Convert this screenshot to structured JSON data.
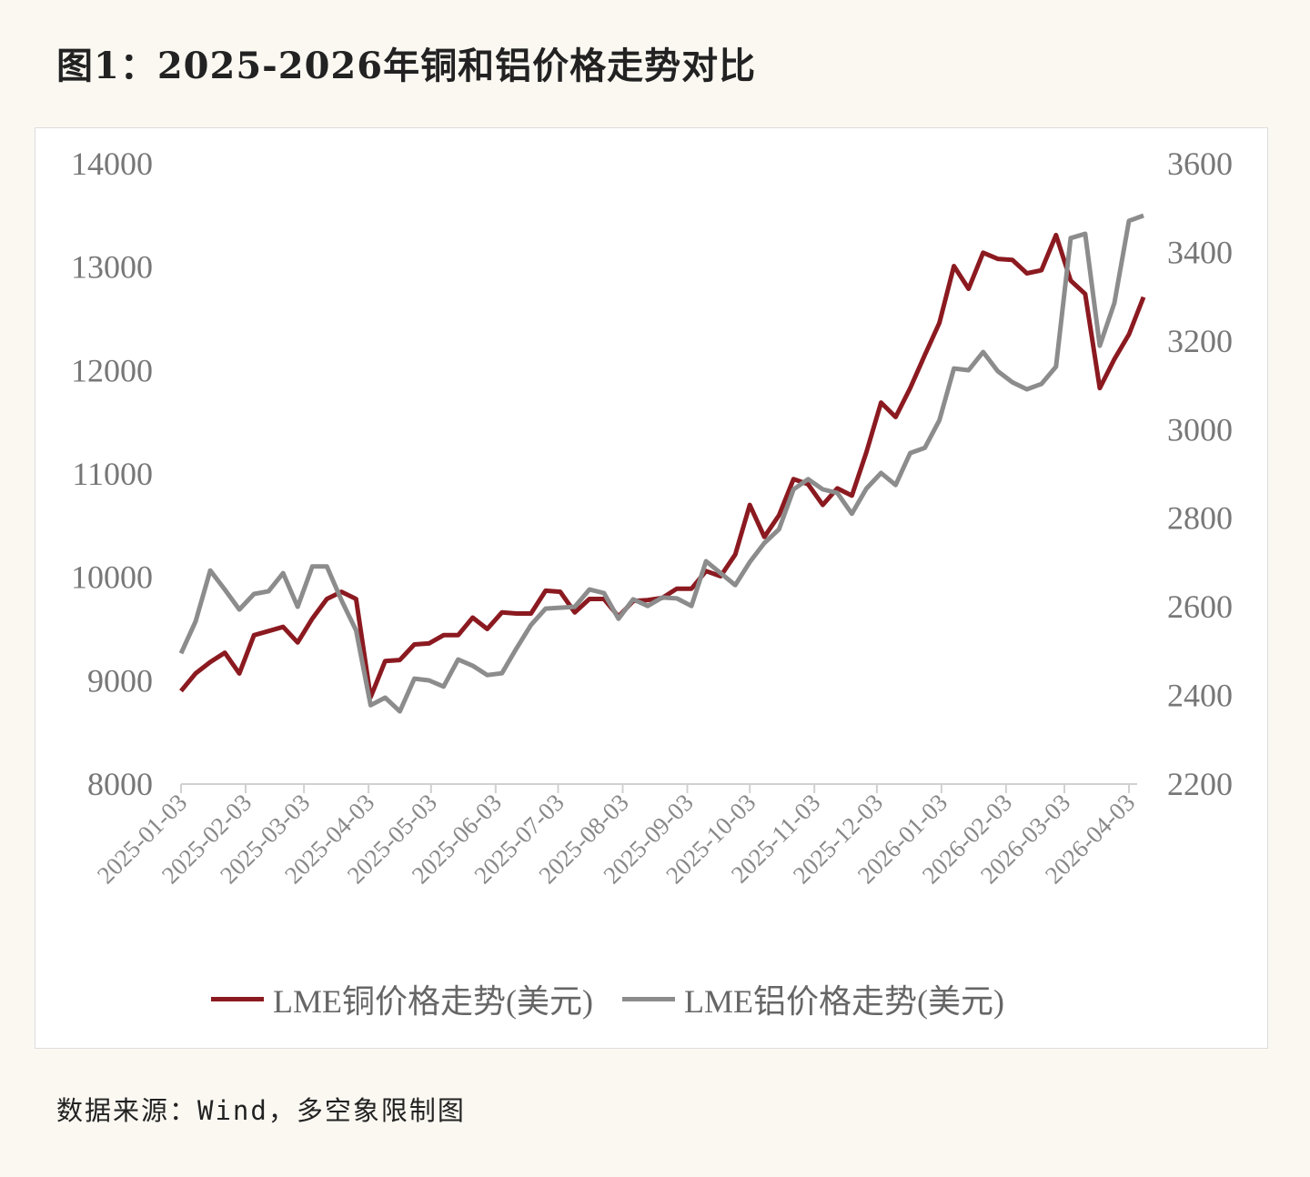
{
  "title": "图1：2025-2026年铜和铝价格走势对比",
  "source": "数据来源：Wind，多空象限制图",
  "chart_data": {
    "type": "line",
    "title": "",
    "xlabel": "",
    "ylabel_left": "",
    "ylabel_right": "",
    "grid": false,
    "legend_position": "bottom",
    "x_ticks": [
      "2025-01-03",
      "2025-02-03",
      "2025-03-03",
      "2025-04-03",
      "2025-05-03",
      "2025-06-03",
      "2025-07-03",
      "2025-08-03",
      "2025-09-03",
      "2025-10-03",
      "2025-11-03",
      "2025-12-03",
      "2026-01-03",
      "2026-02-03",
      "2026-03-03",
      "2026-04-03"
    ],
    "y_left": {
      "range": [
        8000,
        14000
      ],
      "ticks": [
        "8000",
        "9000",
        "10000",
        "11000",
        "12000",
        "13000",
        "14000"
      ]
    },
    "y_right": {
      "range": [
        2200,
        3600
      ],
      "ticks": [
        "2200",
        "2400",
        "2600",
        "2800",
        "3000",
        "3200",
        "3400",
        "3600"
      ]
    },
    "x": [
      "2025-01-03",
      "2025-01-10",
      "2025-01-17",
      "2025-01-24",
      "2025-01-31",
      "2025-02-07",
      "2025-02-14",
      "2025-02-21",
      "2025-02-28",
      "2025-03-07",
      "2025-03-14",
      "2025-03-21",
      "2025-03-28",
      "2025-04-04",
      "2025-04-11",
      "2025-04-18",
      "2025-04-25",
      "2025-05-02",
      "2025-05-09",
      "2025-05-16",
      "2025-05-23",
      "2025-05-30",
      "2025-06-06",
      "2025-06-13",
      "2025-06-20",
      "2025-06-27",
      "2025-07-04",
      "2025-07-11",
      "2025-07-18",
      "2025-07-25",
      "2025-08-01",
      "2025-08-08",
      "2025-08-15",
      "2025-08-22",
      "2025-08-29",
      "2025-09-05",
      "2025-09-12",
      "2025-09-19",
      "2025-09-26",
      "2025-10-03",
      "2025-10-10",
      "2025-10-17",
      "2025-10-24",
      "2025-10-31",
      "2025-11-07",
      "2025-11-14",
      "2025-11-21",
      "2025-11-28",
      "2025-12-05",
      "2025-12-12",
      "2025-12-19",
      "2025-12-26",
      "2026-01-02",
      "2026-01-09",
      "2026-01-16",
      "2026-01-23",
      "2026-01-30",
      "2026-02-06",
      "2026-02-13",
      "2026-02-20",
      "2026-02-27",
      "2026-03-06",
      "2026-03-13",
      "2026-03-20",
      "2026-03-27",
      "2026-04-03",
      "2026-04-10"
    ],
    "series": [
      {
        "name": "LME铜价格走势(美元)",
        "axis": "left",
        "color": "#8b1a20",
        "values": [
          8900,
          9070,
          9180,
          9270,
          9070,
          9440,
          9480,
          9520,
          9370,
          9600,
          9790,
          9860,
          9790,
          8840,
          9190,
          9200,
          9350,
          9360,
          9440,
          9440,
          9610,
          9500,
          9660,
          9650,
          9650,
          9870,
          9860,
          9660,
          9790,
          9790,
          9620,
          9770,
          9780,
          9800,
          9890,
          9890,
          10060,
          10010,
          10220,
          10700,
          10390,
          10600,
          10950,
          10900,
          10700,
          10860,
          10790,
          11210,
          11690,
          11550,
          11830,
          12150,
          12460,
          13010,
          12790,
          13140,
          13080,
          13070,
          12940,
          12970,
          13310,
          12870,
          12740,
          11830,
          12110,
          12350,
          12710
        ]
      },
      {
        "name": "LME铝价格走势(美元)",
        "axis": "right",
        "color": "#8c8c8c",
        "values": [
          2495,
          2567,
          2682,
          2639,
          2594,
          2629,
          2635,
          2676,
          2600,
          2691,
          2691,
          2615,
          2547,
          2378,
          2395,
          2364,
          2438,
          2434,
          2420,
          2481,
          2467,
          2446,
          2450,
          2506,
          2559,
          2596,
          2598,
          2600,
          2639,
          2631,
          2573,
          2617,
          2602,
          2621,
          2619,
          2602,
          2703,
          2676,
          2649,
          2701,
          2744,
          2775,
          2865,
          2888,
          2865,
          2857,
          2810,
          2867,
          2902,
          2875,
          2947,
          2959,
          3021,
          3138,
          3134,
          3175,
          3132,
          3107,
          3091,
          3103,
          3142,
          3432,
          3442,
          3189,
          3286,
          3471,
          3483
        ]
      }
    ]
  }
}
